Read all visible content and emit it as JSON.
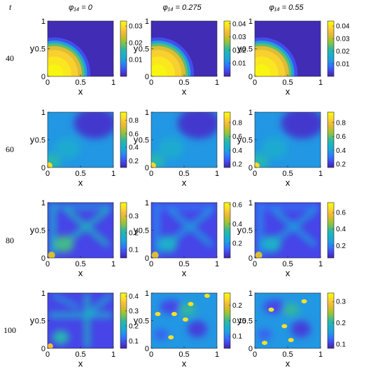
{
  "figure": {
    "time_symbol": "t",
    "column_headers": [
      "φ₁₄ = 0",
      "φ₁₄ = 0.275",
      "φ₁₄ = 0.55"
    ],
    "row_labels": [
      "40",
      "60",
      "80",
      "100"
    ]
  },
  "colors": {
    "colormap": [
      "#3e26a8",
      "#4744e8",
      "#2f78fb",
      "#1f9fdd",
      "#1ab1c8",
      "#33b89a",
      "#82c24a",
      "#c4c029",
      "#f5ba3c",
      "#fadf27",
      "#f9fb0e"
    ]
  },
  "chart_data": [
    {
      "type": "heatmap",
      "row": 0,
      "col": 0,
      "time": 40,
      "phi14": 0,
      "xlabel": "x",
      "ylabel": "y",
      "xlim": [
        0,
        1
      ],
      "ylim": [
        0,
        1
      ],
      "xticks": [
        "0",
        "0.5",
        "1"
      ],
      "yticks": [
        "0",
        "0.5",
        "1"
      ],
      "colorbar_ticks": [
        "0.01",
        "0.02",
        "0.03"
      ],
      "clim": [
        0,
        0.033
      ],
      "pattern": "quarter_disc_lower_left"
    },
    {
      "type": "heatmap",
      "row": 0,
      "col": 1,
      "time": 40,
      "phi14": 0.275,
      "xlabel": "x",
      "ylabel": "y",
      "xlim": [
        0,
        1
      ],
      "ylim": [
        0,
        1
      ],
      "xticks": [
        "0",
        "0.5",
        "1"
      ],
      "yticks": [
        "0",
        "0.5",
        "1"
      ],
      "colorbar_ticks": [
        "0.01",
        "0.02",
        "0.03",
        "0.04"
      ],
      "clim": [
        0,
        0.042
      ],
      "pattern": "quarter_disc_lower_left"
    },
    {
      "type": "heatmap",
      "row": 0,
      "col": 2,
      "time": 40,
      "phi14": 0.55,
      "xlabel": "x",
      "ylabel": "y",
      "xlim": [
        0,
        1
      ],
      "ylim": [
        0,
        1
      ],
      "xticks": [
        "0",
        "0.5",
        "1"
      ],
      "yticks": [
        "0",
        "0.5",
        "1"
      ],
      "colorbar_ticks": [
        "0.01",
        "0.02",
        "0.03",
        "0.04"
      ],
      "clim": [
        0,
        0.044
      ],
      "pattern": "quarter_disc_lower_left"
    },
    {
      "type": "heatmap",
      "row": 1,
      "col": 0,
      "time": 60,
      "phi14": 0,
      "xlabel": "x",
      "ylabel": "y",
      "xlim": [
        0,
        1
      ],
      "ylim": [
        0,
        1
      ],
      "xticks": [
        "0",
        "0.5",
        "1"
      ],
      "yticks": [
        "0",
        "0.5",
        "1"
      ],
      "colorbar_ticks": [
        "0.2",
        "0.4",
        "0.6",
        "0.8"
      ],
      "clim": [
        0.1,
        0.92
      ],
      "pattern": "smooth_field_hot_corner"
    },
    {
      "type": "heatmap",
      "row": 1,
      "col": 1,
      "time": 60,
      "phi14": 0.275,
      "xlabel": "x",
      "ylabel": "y",
      "xlim": [
        0,
        1
      ],
      "ylim": [
        0,
        1
      ],
      "xticks": [
        "0",
        "0.5",
        "1"
      ],
      "yticks": [
        "0",
        "0.5",
        "1"
      ],
      "colorbar_ticks": [
        "0.2",
        "0.4",
        "0.6",
        "0.8"
      ],
      "clim": [
        0.15,
        0.95
      ],
      "pattern": "smooth_field_hot_corner"
    },
    {
      "type": "heatmap",
      "row": 1,
      "col": 2,
      "time": 60,
      "phi14": 0.55,
      "xlabel": "x",
      "ylabel": "y",
      "xlim": [
        0,
        1
      ],
      "ylim": [
        0,
        1
      ],
      "xticks": [
        "0",
        "0.5",
        "1"
      ],
      "yticks": [
        "0",
        "0.5",
        "1"
      ],
      "colorbar_ticks": [
        "0.2",
        "0.4",
        "0.6",
        "0.8"
      ],
      "clim": [
        0.15,
        0.95
      ],
      "pattern": "smooth_field_hot_corner"
    },
    {
      "type": "heatmap",
      "row": 2,
      "col": 0,
      "time": 80,
      "phi14": 0,
      "xlabel": "x",
      "ylabel": "y",
      "xlim": [
        0,
        1
      ],
      "ylim": [
        0,
        1
      ],
      "xticks": [
        "0",
        "0.5",
        "1"
      ],
      "yticks": [
        "0",
        "0.5",
        "1"
      ],
      "colorbar_ticks": [
        "0.1",
        "0.2",
        "0.3"
      ],
      "clim": [
        0.05,
        0.38
      ],
      "pattern": "cross_pattern"
    },
    {
      "type": "heatmap",
      "row": 2,
      "col": 1,
      "time": 80,
      "phi14": 0.275,
      "xlabel": "x",
      "ylabel": "y",
      "xlim": [
        0,
        1
      ],
      "ylim": [
        0,
        1
      ],
      "xticks": [
        "0",
        "0.5",
        "1"
      ],
      "yticks": [
        "0",
        "0.5",
        "1"
      ],
      "colorbar_ticks": [
        "0.2",
        "0.4",
        "0.6"
      ],
      "clim": [
        0.05,
        0.62
      ],
      "pattern": "cross_pattern"
    },
    {
      "type": "heatmap",
      "row": 2,
      "col": 2,
      "time": 80,
      "phi14": 0.55,
      "xlabel": "x",
      "ylabel": "y",
      "xlim": [
        0,
        1
      ],
      "ylim": [
        0,
        1
      ],
      "xticks": [
        "0",
        "0.5",
        "1"
      ],
      "yticks": [
        "0",
        "0.5",
        "1"
      ],
      "colorbar_ticks": [
        "0.2",
        "0.4",
        "0.6"
      ],
      "clim": [
        0.05,
        0.72
      ],
      "pattern": "cross_pattern"
    },
    {
      "type": "heatmap",
      "row": 3,
      "col": 0,
      "time": 100,
      "phi14": 0,
      "xlabel": "x",
      "ylabel": "y",
      "xlim": [
        0,
        1
      ],
      "ylim": [
        0,
        1
      ],
      "xticks": [
        "0",
        "0.5",
        "1"
      ],
      "yticks": [
        "0",
        "0.5",
        "1"
      ],
      "colorbar_ticks": [
        "0.1",
        "0.2",
        "0.3",
        "0.4"
      ],
      "clim": [
        0.05,
        0.42
      ],
      "pattern": "network_pattern"
    },
    {
      "type": "heatmap",
      "row": 3,
      "col": 1,
      "time": 100,
      "phi14": 0.275,
      "xlabel": "x",
      "ylabel": "y",
      "xlim": [
        0,
        1
      ],
      "ylim": [
        0,
        1
      ],
      "xticks": [
        "0",
        "0.5",
        "1"
      ],
      "yticks": [
        "0",
        "0.5",
        "1"
      ],
      "colorbar_ticks": [
        "0.1",
        "0.15",
        "0.2"
      ],
      "clim": [
        0.06,
        0.24
      ],
      "pattern": "spotted_pattern"
    },
    {
      "type": "heatmap",
      "row": 3,
      "col": 2,
      "time": 100,
      "phi14": 0.55,
      "xlabel": "x",
      "ylabel": "y",
      "xlim": [
        0,
        1
      ],
      "ylim": [
        0,
        1
      ],
      "xticks": [
        "0",
        "0.5",
        "1"
      ],
      "yticks": [
        "0",
        "0.5",
        "1"
      ],
      "colorbar_ticks": [
        "0.1",
        "0.2",
        "0.3"
      ],
      "clim": [
        0.08,
        0.34
      ],
      "pattern": "spotted_pattern"
    }
  ]
}
